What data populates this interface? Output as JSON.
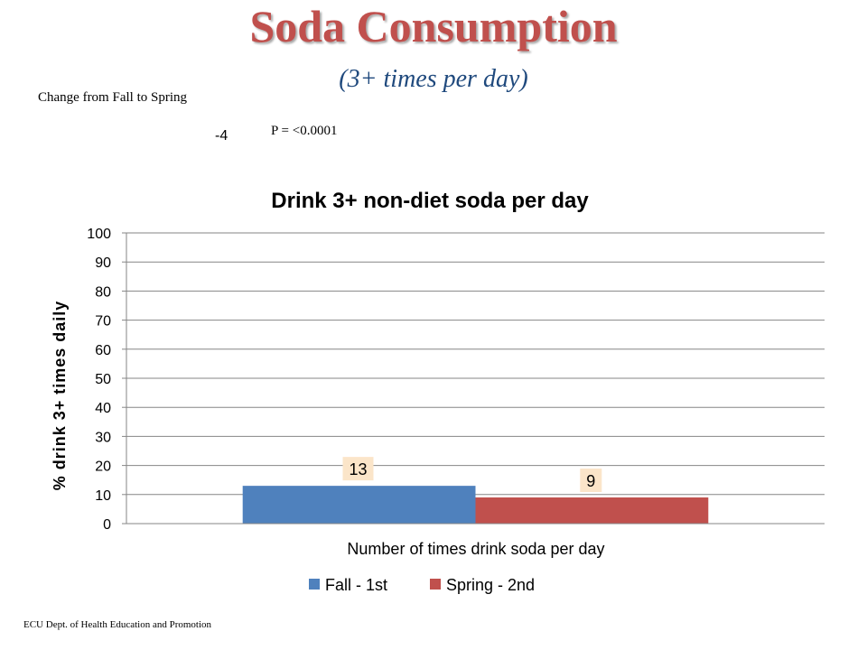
{
  "slide": {
    "title": "Soda Consumption",
    "subtitle": "(3+ times per day)",
    "change_label": "Change  from Fall to Spring",
    "change_value": "-4",
    "p_value": "P = <0.0001",
    "footer": "ECU Dept. of Health Education and Promotion"
  },
  "colors": {
    "fall": "#4f81bd",
    "spring": "#c0504d",
    "title": "#c0504d",
    "subtitle": "#1f497d",
    "label_box": "#fbe5c9"
  },
  "chart_data": {
    "type": "bar",
    "title": "Drink 3+ non-diet soda per day",
    "xlabel": "Number of times drink soda per day",
    "ylabel": "% drink 3+ times daily",
    "ylim": [
      0,
      100
    ],
    "yticks": [
      0,
      10,
      20,
      30,
      40,
      50,
      60,
      70,
      80,
      90,
      100
    ],
    "categories": [
      ""
    ],
    "series": [
      {
        "name": "Fall - 1st",
        "values": [
          13
        ],
        "label": "13",
        "color": "#4f81bd"
      },
      {
        "name": "Spring - 2nd",
        "values": [
          9
        ],
        "label": "9",
        "color": "#c0504d"
      }
    ],
    "grid": true,
    "legend": "bottom"
  }
}
